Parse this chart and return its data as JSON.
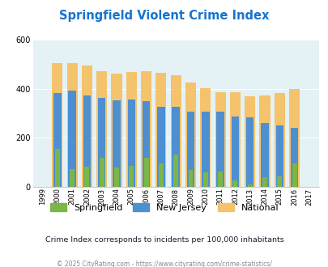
{
  "title": "Springfield Violent Crime Index",
  "years": [
    1999,
    2000,
    2001,
    2002,
    2003,
    2004,
    2005,
    2006,
    2007,
    2008,
    2009,
    2010,
    2011,
    2012,
    2013,
    2014,
    2015,
    2016,
    2017
  ],
  "springfield": [
    0,
    155,
    72,
    83,
    120,
    78,
    85,
    118,
    95,
    133,
    68,
    60,
    62,
    25,
    10,
    40,
    43,
    95,
    0
  ],
  "new_jersey": [
    0,
    383,
    393,
    375,
    362,
    355,
    356,
    351,
    328,
    328,
    308,
    308,
    308,
    288,
    283,
    260,
    250,
    242,
    0
  ],
  "national": [
    0,
    507,
    506,
    497,
    473,
    463,
    470,
    473,
    466,
    457,
    428,
    404,
    387,
    387,
    370,
    375,
    383,
    400,
    0
  ],
  "springfield_color": "#7ab648",
  "new_jersey_color": "#4d8fd1",
  "national_color": "#f5c36b",
  "bg_color": "#e4f1f5",
  "ylim": [
    0,
    600
  ],
  "yticks": [
    0,
    200,
    400,
    600
  ],
  "subtitle": "Crime Index corresponds to incidents per 100,000 inhabitants",
  "footer": "© 2025 CityRating.com - https://www.cityrating.com/crime-statistics/",
  "title_color": "#1874cd",
  "subtitle_color": "#1a1a2e",
  "footer_color": "#888888",
  "legend_labels": [
    "Springfield",
    "New Jersey",
    "National"
  ]
}
